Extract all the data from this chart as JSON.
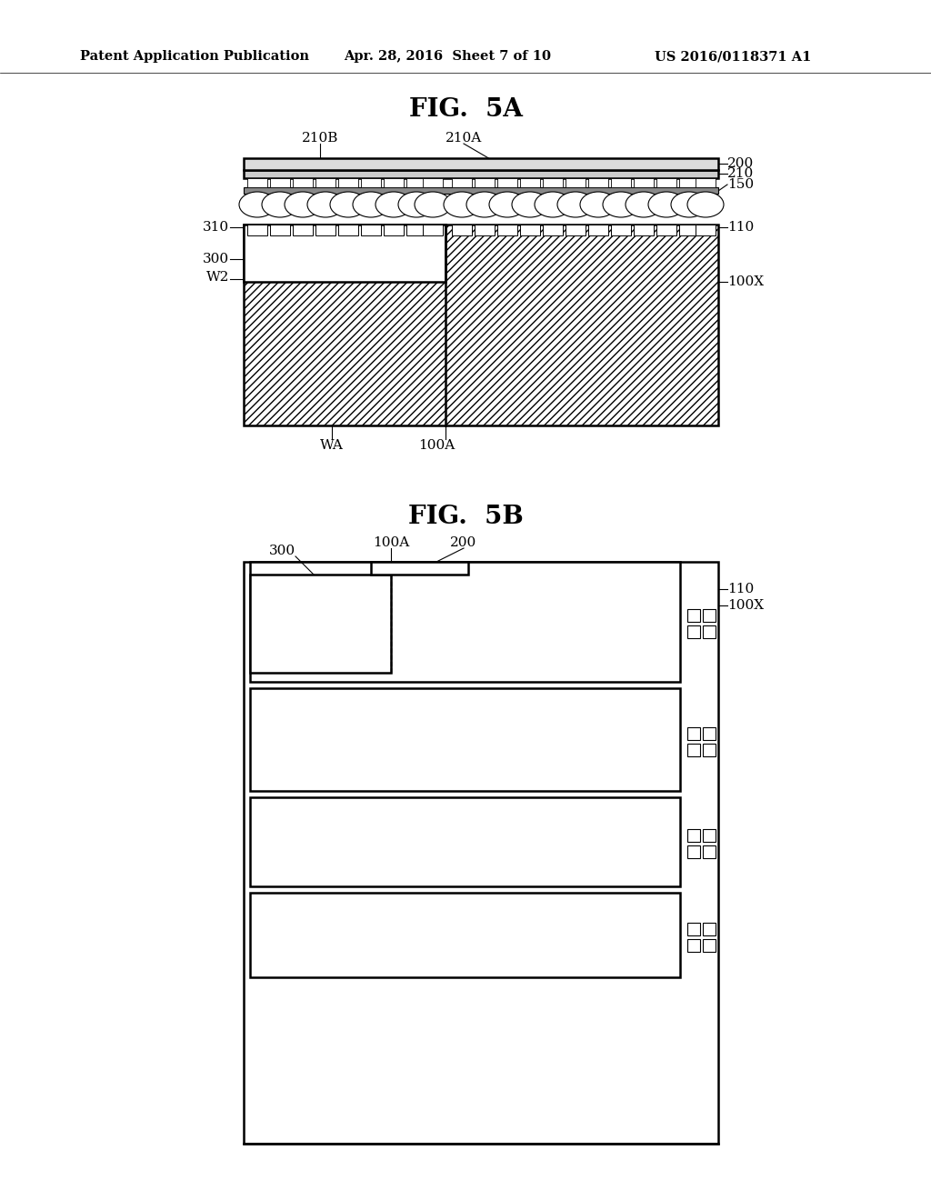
{
  "bg_color": "#ffffff",
  "header_text": "Patent Application Publication",
  "header_date": "Apr. 28, 2016  Sheet 7 of 10",
  "header_patent": "US 2016/0118371 A1",
  "fig5a_title": "FIG.  5A",
  "fig5b_title": "FIG.  5B"
}
